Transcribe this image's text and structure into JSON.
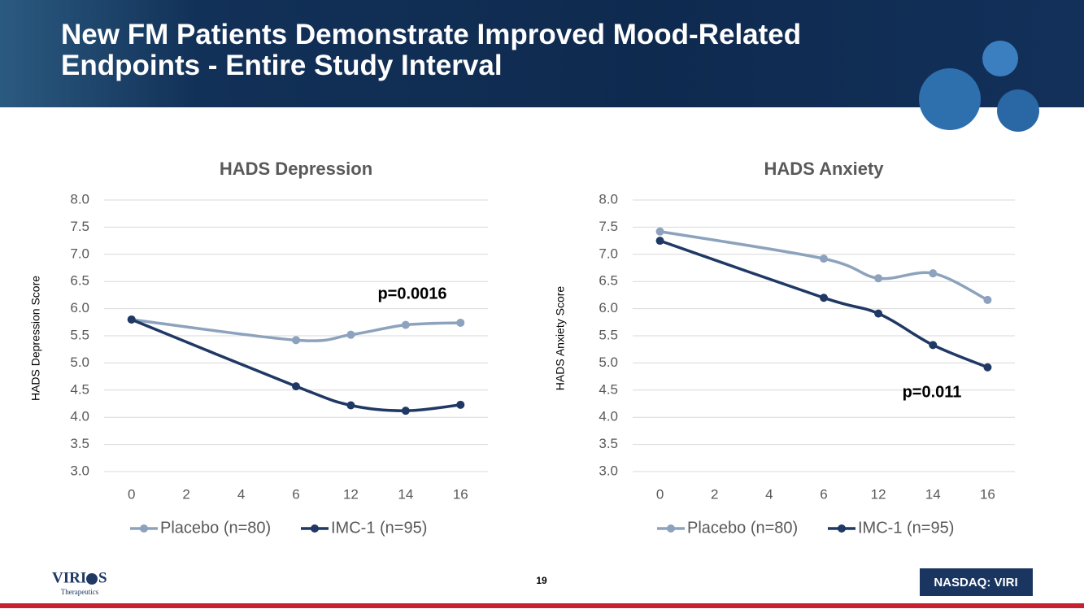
{
  "header": {
    "title": "New FM Patients Demonstrate Improved Mood-Related Endpoints - Entire Study Interval"
  },
  "footer": {
    "logo_left": "VIRI",
    "logo_right": "S",
    "logo_subtitle": "Therapeutics",
    "page_number": "19",
    "ticker": "NASDAQ: VIRI"
  },
  "chart_data": [
    {
      "type": "line",
      "title": "HADS Depression",
      "y_label": "HADS Depression Score",
      "categories": [
        "0",
        "2",
        "4",
        "6",
        "12",
        "14",
        "16"
      ],
      "series": [
        {
          "name": "Placebo (n=80)",
          "color": "#8da2bd",
          "values": [
            5.8,
            null,
            null,
            5.42,
            5.52,
            5.7,
            5.74
          ]
        },
        {
          "name": "IMC-1 (n=95)",
          "color": "#1f3864",
          "values": [
            5.8,
            null,
            null,
            4.57,
            4.22,
            4.12,
            4.23
          ]
        }
      ],
      "ylim": [
        3,
        8
      ],
      "yticks": [
        {
          "value": 3,
          "label": "3.0"
        },
        {
          "value": 3.5,
          "label": "3.5"
        },
        {
          "value": 4,
          "label": "4.0"
        },
        {
          "value": 4.5,
          "label": "4.5"
        },
        {
          "value": 5,
          "label": "5.0"
        },
        {
          "value": 5.5,
          "label": "5.5"
        },
        {
          "value": 6,
          "label": "6.0"
        },
        {
          "value": 6.5,
          "label": "6.5"
        },
        {
          "value": 7,
          "label": "7.0"
        },
        {
          "value": 7.5,
          "label": "7.5"
        },
        {
          "value": 8,
          "label": "8.0"
        }
      ],
      "grid": true,
      "connect_gaps": true,
      "smooth": true,
      "legend": "bottom",
      "annotation": "p=0.0016"
    },
    {
      "type": "line",
      "title": "HADS Anxiety",
      "y_label": "HADS Anxiety Score",
      "categories": [
        "0",
        "2",
        "4",
        "6",
        "12",
        "14",
        "16"
      ],
      "series": [
        {
          "name": "Placebo (n=80)",
          "color": "#8da2bd",
          "values": [
            7.42,
            null,
            null,
            6.92,
            6.56,
            6.65,
            6.16
          ]
        },
        {
          "name": "IMC-1 (n=95)",
          "color": "#1f3864",
          "values": [
            7.25,
            null,
            null,
            6.2,
            5.91,
            5.33,
            4.92
          ]
        }
      ],
      "ylim": [
        3,
        8
      ],
      "yticks": [
        {
          "value": 3,
          "label": "3.0"
        },
        {
          "value": 3.5,
          "label": "3.5"
        },
        {
          "value": 4,
          "label": "4.0"
        },
        {
          "value": 4.5,
          "label": "4.5"
        },
        {
          "value": 5,
          "label": "5.0"
        },
        {
          "value": 5.5,
          "label": "5.5"
        },
        {
          "value": 6,
          "label": "6.0"
        },
        {
          "value": 6.5,
          "label": "6.5"
        },
        {
          "value": 7,
          "label": "7.0"
        },
        {
          "value": 7.5,
          "label": "7.5"
        },
        {
          "value": 8,
          "label": "8.0"
        }
      ],
      "grid": true,
      "connect_gaps": true,
      "smooth": true,
      "legend": "bottom",
      "annotation": "p=0.011"
    }
  ]
}
